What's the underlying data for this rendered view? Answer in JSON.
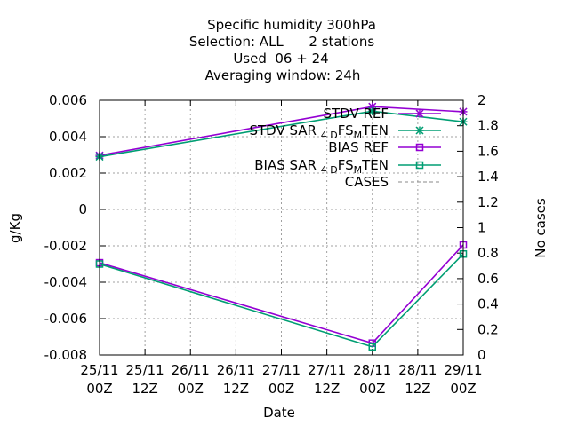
{
  "chart_data": {
    "type": "line",
    "title_lines": [
      "Specific humidity 300hPa",
      "Selection: ALL      2 stations",
      "Used  06 + 24",
      "Averaging window: 24h"
    ],
    "xlabel": "Date",
    "ylabel": "g/Kg",
    "y2label": "No cases",
    "x_ticks": [
      {
        "top": "25/11",
        "bottom": "00Z"
      },
      {
        "top": "25/11",
        "bottom": "12Z"
      },
      {
        "top": "26/11",
        "bottom": "00Z"
      },
      {
        "top": "26/11",
        "bottom": "12Z"
      },
      {
        "top": "27/11",
        "bottom": "00Z"
      },
      {
        "top": "27/11",
        "bottom": "12Z"
      },
      {
        "top": "28/11",
        "bottom": "00Z"
      },
      {
        "top": "28/11",
        "bottom": "12Z"
      },
      {
        "top": "29/11",
        "bottom": "00Z"
      }
    ],
    "ylim": [
      -0.008,
      0.006
    ],
    "y_ticks": [
      "0.006",
      "0.004",
      "0.002",
      "0",
      "-0.002",
      "-0.004",
      "-0.006",
      "-0.008"
    ],
    "y2lim": [
      0,
      2
    ],
    "y2_ticks": [
      "2",
      "1.8",
      "1.6",
      "1.4",
      "1.2",
      "1",
      "0.8",
      "0.6",
      "0.4",
      "0.2",
      "0"
    ],
    "grid": true,
    "legend_position": "top-right",
    "series": [
      {
        "name": "STDV REF",
        "color": "#9400d3",
        "marker": "star",
        "points": [
          [
            0,
            0.00297
          ],
          [
            6,
            0.00565
          ],
          [
            8,
            0.00537
          ]
        ]
      },
      {
        "name": "STDV SAR_4DFS_MTEN",
        "name_parts": [
          "STDV SAR",
          "4",
          "D",
          "FS",
          "M",
          "TEN"
        ],
        "color": "#009e73",
        "marker": "star",
        "points": [
          [
            0,
            0.0029
          ],
          [
            6,
            0.0054
          ],
          [
            8,
            0.00482
          ]
        ]
      },
      {
        "name": "BIAS REF",
        "color": "#9400d3",
        "marker": "square",
        "points": [
          [
            0,
            -0.00293
          ],
          [
            6,
            -0.00735
          ],
          [
            8,
            -0.00195
          ]
        ]
      },
      {
        "name": "BIAS SAR_4DFS_MTEN",
        "name_parts": [
          "BIAS SAR",
          "4",
          "D",
          "FS",
          "M",
          "TEN"
        ],
        "color": "#009e73",
        "marker": "square",
        "points": [
          [
            0,
            -0.003
          ],
          [
            6,
            -0.00755
          ],
          [
            8,
            -0.00245
          ]
        ]
      },
      {
        "name": "CASES",
        "color": "#888888",
        "marker": "dashed",
        "axis": "y2",
        "points": [
          [
            0,
            2
          ],
          [
            6,
            2
          ],
          [
            8,
            2
          ]
        ]
      }
    ]
  }
}
